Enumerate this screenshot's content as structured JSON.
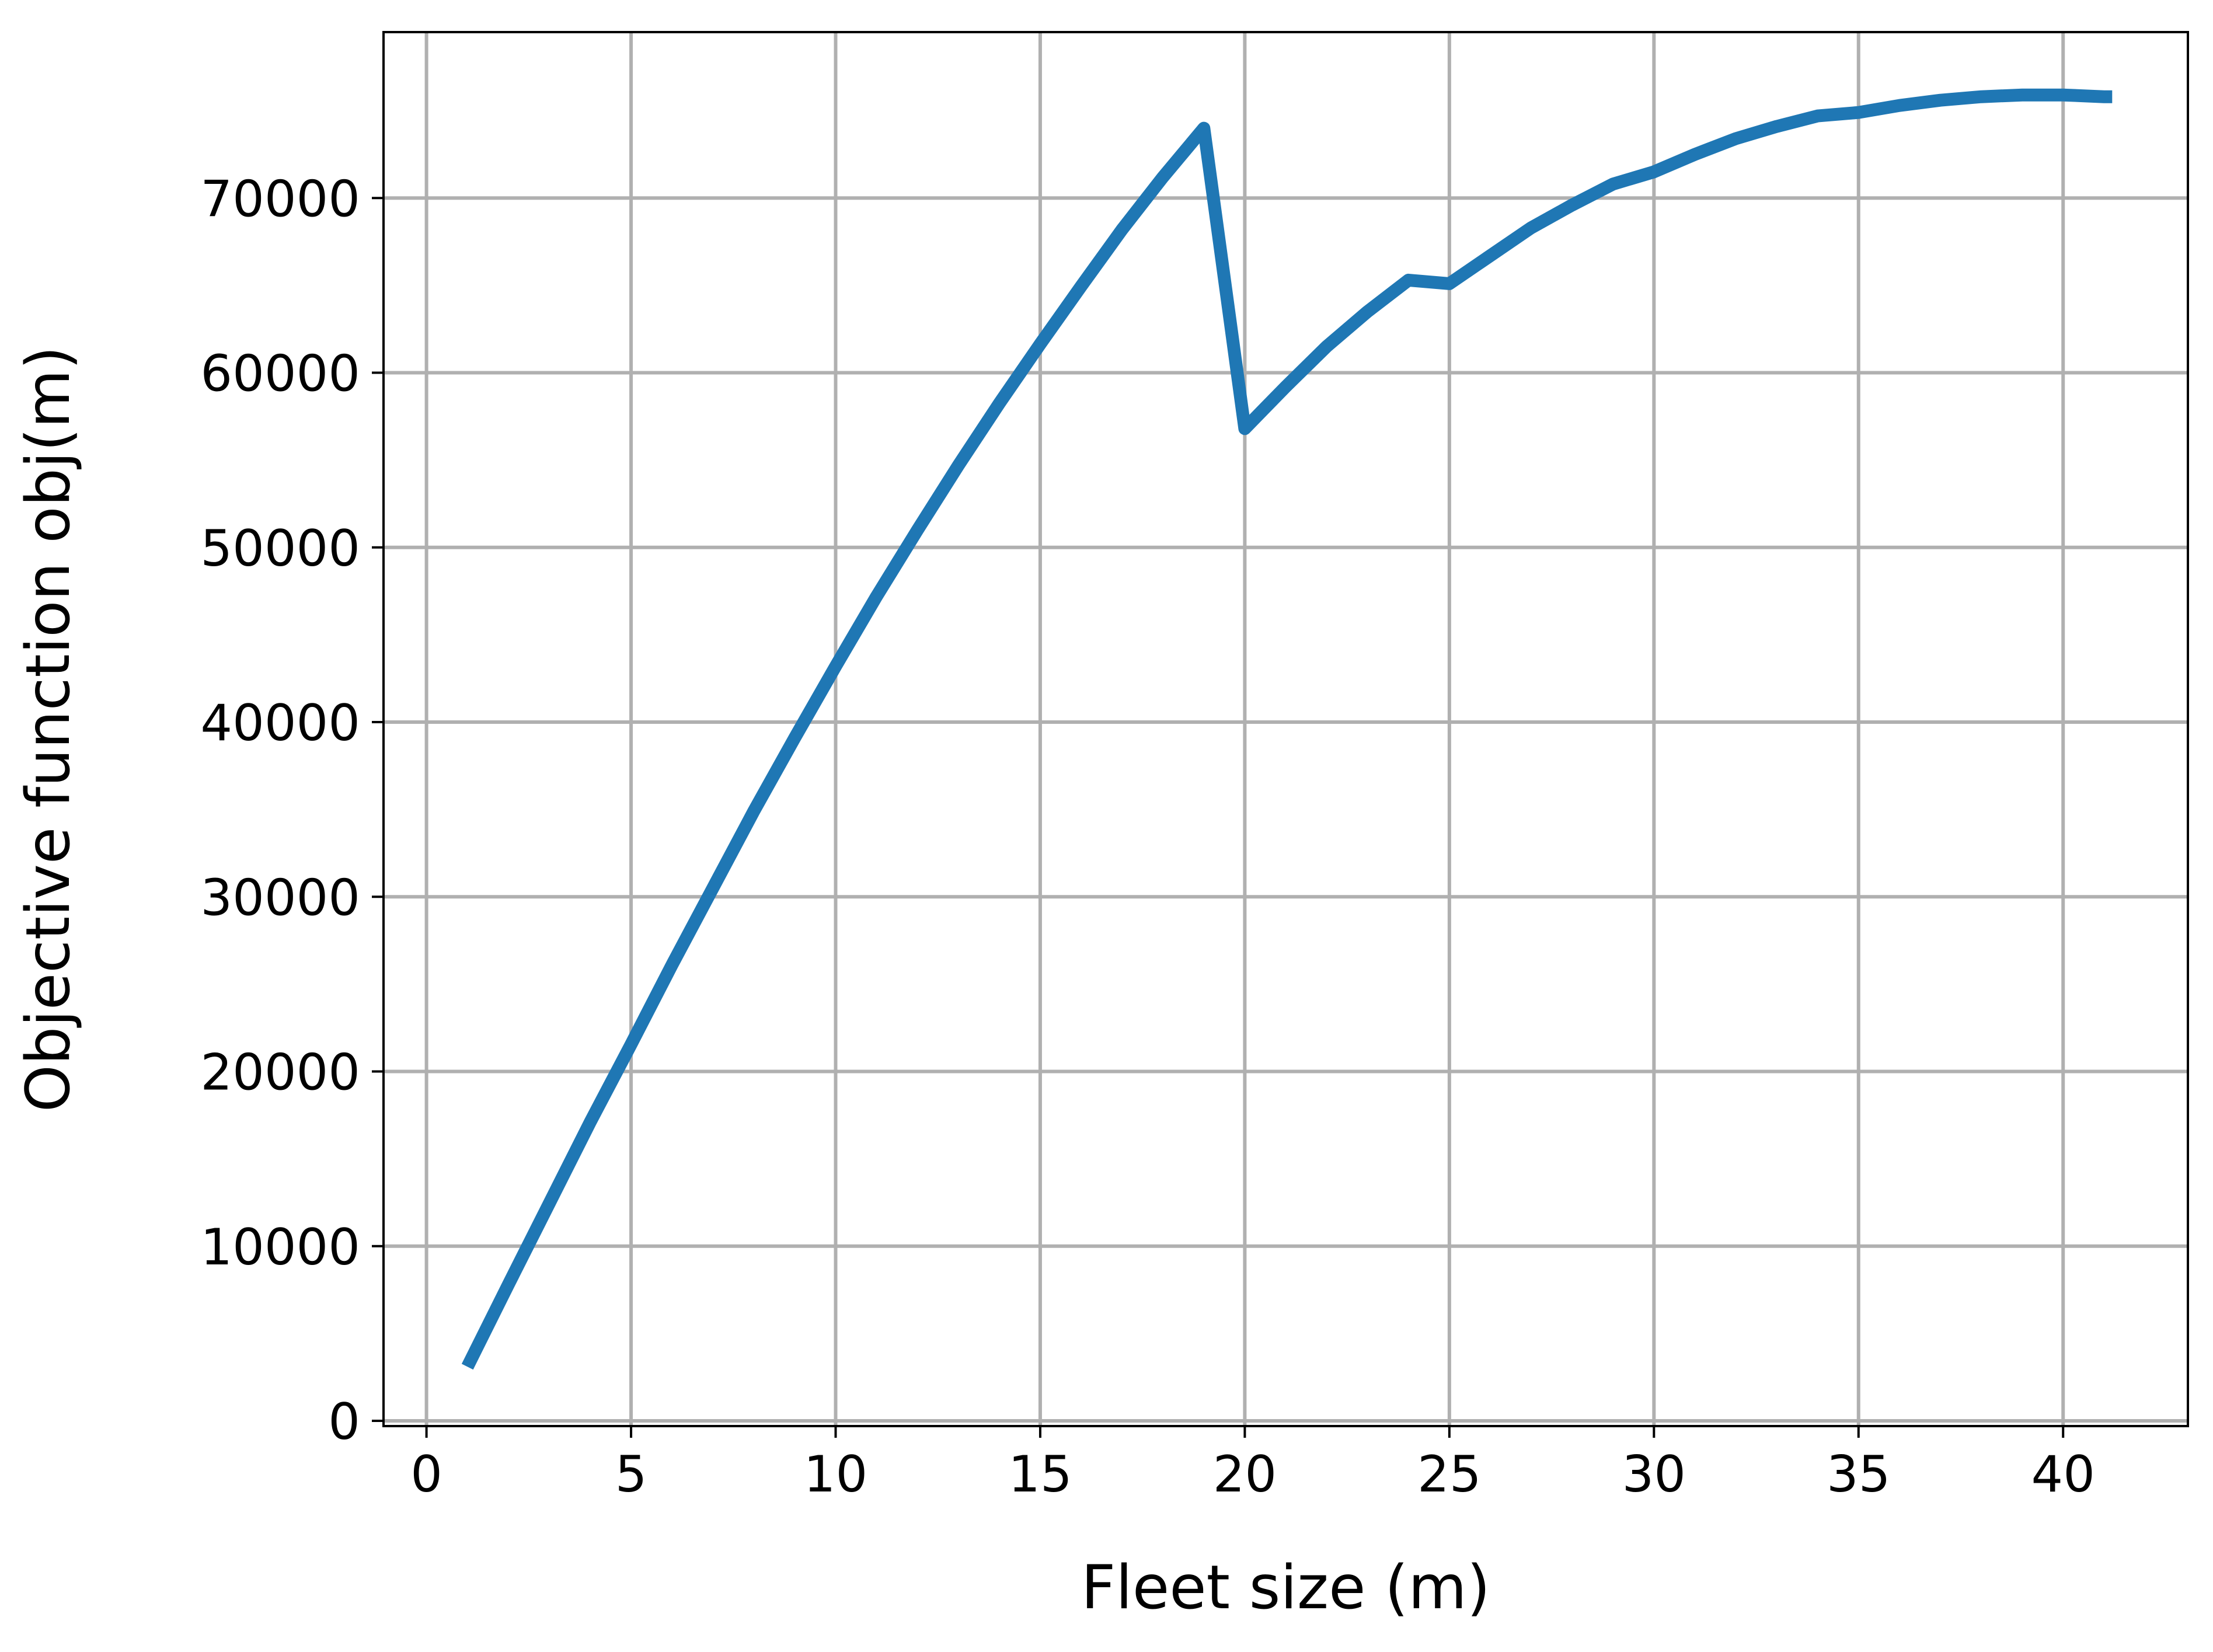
{
  "chart_data": {
    "type": "line",
    "title": "",
    "xlabel": "Fleet size (m)",
    "ylabel": "Objective function obj(m)",
    "xlim": [
      -1.05,
      43.05
    ],
    "ylim": [
      -300,
      79500
    ],
    "xticks": [
      0,
      5,
      10,
      15,
      20,
      25,
      30,
      35,
      40
    ],
    "xtick_labels": [
      "0",
      "5",
      "10",
      "15",
      "20",
      "25",
      "30",
      "35",
      "40"
    ],
    "yticks": [
      0,
      10000,
      20000,
      30000,
      40000,
      50000,
      60000,
      70000
    ],
    "ytick_labels": [
      "0",
      "10000",
      "20000",
      "30000",
      "40000",
      "50000",
      "60000",
      "70000"
    ],
    "grid": true,
    "legend": false,
    "series": [
      {
        "color": "#1f77b4",
        "x": [
          1,
          2,
          3,
          4,
          5,
          6,
          7,
          8,
          9,
          10,
          11,
          12,
          13,
          14,
          15,
          16,
          17,
          18,
          19,
          20,
          21,
          22,
          23,
          24,
          25,
          26,
          27,
          28,
          29,
          30,
          31,
          32,
          33,
          34,
          35,
          36,
          37,
          38,
          39,
          40,
          41,
          41.2
        ],
        "y": [
          3100,
          7800,
          12450,
          17100,
          21550,
          26100,
          30500,
          34900,
          39100,
          43200,
          47200,
          51000,
          54700,
          58250,
          61650,
          64950,
          68200,
          71200,
          74000,
          56800,
          59200,
          61500,
          63500,
          65300,
          65100,
          66700,
          68300,
          69600,
          70800,
          71500,
          72500,
          73400,
          74100,
          74700,
          74900,
          75300,
          75600,
          75800,
          75900,
          75900,
          75800,
          75800
        ]
      }
    ]
  }
}
